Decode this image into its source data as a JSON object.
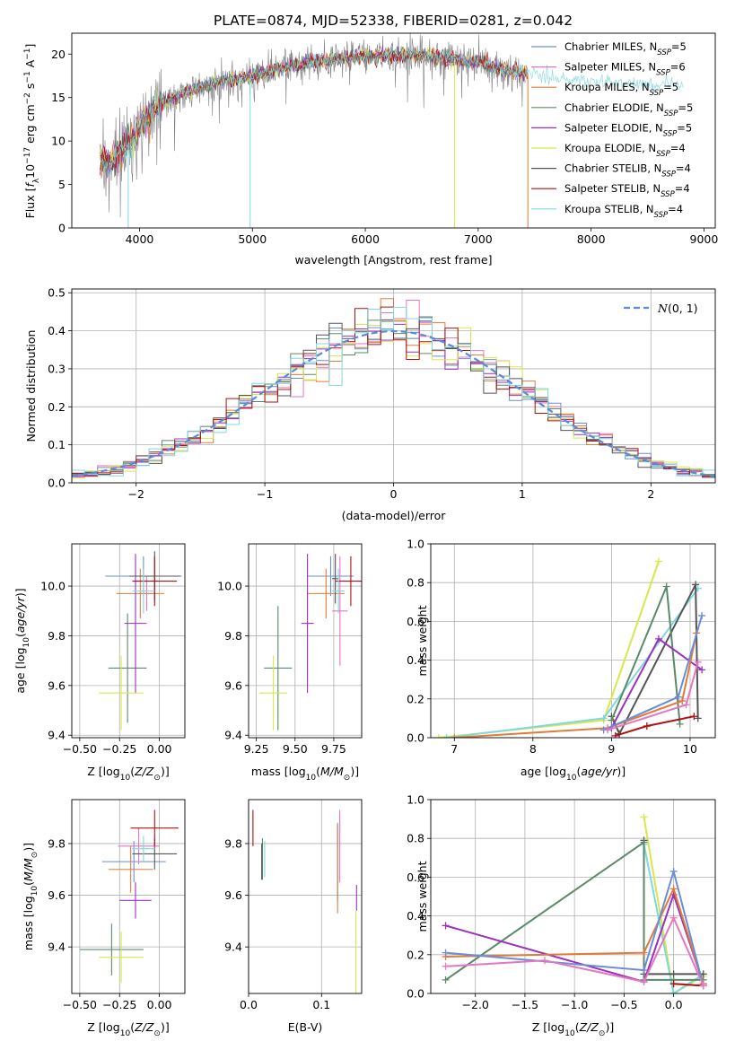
{
  "figure": {
    "title": "PLATE=0874, MJD=52338, FIBERID=0281, z=0.042"
  },
  "chart_data": [
    {
      "id": "spectrum",
      "type": "line",
      "xlabel": "wavelength [Angstrom, rest frame]",
      "ylabel": "Flux [f_λ10^-17 erg cm^-2 s^-1 A^-1]",
      "xlim": [
        3400,
        9100
      ],
      "ylim": [
        0,
        22.4
      ],
      "xticks": [
        4000,
        5000,
        6000,
        7000,
        8000,
        9000
      ],
      "yticks": [
        0,
        5,
        10,
        15,
        20
      ],
      "legend": [
        {
          "base": "Chabrier MILES, N",
          "sub": "SSP",
          "tail": "=5",
          "color": "#6a8ed6"
        },
        {
          "base": "Salpeter MILES, N",
          "sub": "SSP",
          "tail": "=6",
          "color": "#e377c2"
        },
        {
          "base": "Kroupa MILES, N",
          "sub": "SSP",
          "tail": "=5",
          "color": "#e07b39"
        },
        {
          "base": "Chabrier ELODIE, N",
          "sub": "SSP",
          "tail": "=5",
          "color": "#5a8a6a"
        },
        {
          "base": "Salpeter ELODIE, N",
          "sub": "SSP",
          "tail": "=5",
          "color": "#9b30c0"
        },
        {
          "base": "Kroupa ELODIE, N",
          "sub": "SSP",
          "tail": "=4",
          "color": "#d8e84a"
        },
        {
          "base": "Chabrier STELIB, N",
          "sub": "SSP",
          "tail": "=4",
          "color": "#555555"
        },
        {
          "base": "Salpeter STELIB, N",
          "sub": "SSP",
          "tail": "=4",
          "color": "#b01010"
        },
        {
          "base": "Kroupa STELIB, N",
          "sub": "SSP",
          "tail": "=4",
          "color": "#7fd8e0"
        }
      ],
      "continuum": {
        "x": [
          3650,
          3750,
          3850,
          3950,
          4050,
          4150,
          4300,
          4500,
          4700,
          4900,
          5100,
          5300,
          5500,
          5800,
          6100,
          6400,
          6700,
          7000,
          7300,
          7600,
          7900,
          8200,
          8500,
          8800
        ],
        "y": [
          8.0,
          7.5,
          9.0,
          10.5,
          12.5,
          14.0,
          15.0,
          16.0,
          16.8,
          17.2,
          17.8,
          18.5,
          19.0,
          19.5,
          19.8,
          20.0,
          19.5,
          19.0,
          18.0,
          17.5,
          17.0,
          16.8,
          16.5,
          16.4
        ]
      },
      "data_color": "#7f7f7f"
    },
    {
      "id": "residuals",
      "type": "bar",
      "xlabel": "(data-model)/error",
      "ylabel": "Normed distribution",
      "xlim": [
        -2.5,
        2.5
      ],
      "ylim": [
        0,
        0.51
      ],
      "xticks": [
        -2,
        -1,
        0,
        1,
        2
      ],
      "yticks": [
        0.0,
        0.1,
        0.2,
        0.3,
        0.4,
        0.5
      ],
      "grid": true,
      "bin_width": 0.1,
      "reference_label": "N(0,1)",
      "reference_color": "#5b8bd8",
      "legend_position": "top-right",
      "series_colors": [
        "#6a8ed6",
        "#e377c2",
        "#e07b39",
        "#5a8a6a",
        "#9b30c0",
        "#d8e84a",
        "#555555",
        "#b01010",
        "#7fd8e0"
      ]
    },
    {
      "id": "age-vs-Z",
      "type": "scatter",
      "xlabel": "Z [log10(Z/Z⊙)]",
      "ylabel": "age [log10(age/yr)]",
      "xlim": [
        -0.55,
        0.16
      ],
      "ylim": [
        9.39,
        10.17
      ],
      "xticks": [
        -0.5,
        -0.25,
        0.0
      ],
      "yticks": [
        9.4,
        9.6,
        9.8,
        10.0
      ],
      "grid": true,
      "points": [
        {
          "color": "#6a8ed6",
          "x": -0.1,
          "ex": 0.24,
          "y": 10.04,
          "ey": 0.08
        },
        {
          "color": "#e377c2",
          "x": -0.08,
          "ex": 0.04,
          "y": 9.97,
          "ey": 0.07
        },
        {
          "color": "#e07b39",
          "x": -0.12,
          "ex": 0.15,
          "y": 9.97,
          "ey": 0.1
        },
        {
          "color": "#5a8a6a",
          "x": -0.2,
          "ex": 0.12,
          "y": 9.67,
          "ey": 0.22
        },
        {
          "color": "#9b30c0",
          "x": -0.15,
          "ex": 0.07,
          "y": 9.85,
          "ey": 0.28
        },
        {
          "color": "#d8e84a",
          "x": -0.24,
          "ex": 0.14,
          "y": 9.57,
          "ey": 0.15
        },
        {
          "color": "#555555",
          "x": -0.03,
          "ex": 0.16,
          "y": 10.04,
          "ey": 0.1
        },
        {
          "color": "#b01010",
          "x": -0.03,
          "ex": 0.14,
          "y": 10.02,
          "ey": 0.1
        },
        {
          "color": "#7fd8e0",
          "x": -0.1,
          "ex": 0.07,
          "y": 9.98,
          "ey": 0.09
        }
      ]
    },
    {
      "id": "age-vs-mass",
      "type": "scatter",
      "xlabel": "mass [log10(M/M⊙)]",
      "ylabel": "",
      "xlim": [
        9.2,
        9.93
      ],
      "ylim": [
        9.39,
        10.17
      ],
      "xticks": [
        9.25,
        9.5,
        9.75
      ],
      "yticks": [
        9.4,
        9.6,
        9.8,
        10.0
      ],
      "grid": true,
      "points": [
        {
          "color": "#6a8ed6",
          "x": 9.73,
          "ex": 0.15,
          "y": 10.04,
          "ey": 0.08
        },
        {
          "color": "#e377c2",
          "x": 9.79,
          "ex": 0.05,
          "y": 9.9,
          "ey": 0.22
        },
        {
          "color": "#e07b39",
          "x": 9.7,
          "ex": 0.12,
          "y": 9.97,
          "ey": 0.1
        },
        {
          "color": "#5a8a6a",
          "x": 9.39,
          "ex": 0.09,
          "y": 9.67,
          "ey": 0.25
        },
        {
          "color": "#9b30c0",
          "x": 9.58,
          "ex": 0.04,
          "y": 9.85,
          "ey": 0.28
        },
        {
          "color": "#d8e84a",
          "x": 9.36,
          "ex": 0.09,
          "y": 9.57,
          "ey": 0.15
        },
        {
          "color": "#555555",
          "x": 9.76,
          "ex": 0.02,
          "y": 10.03,
          "ey": 0.1
        },
        {
          "color": "#b01010",
          "x": 9.86,
          "ex": 0.1,
          "y": 10.02,
          "ey": 0.1
        },
        {
          "color": "#7fd8e0",
          "x": 9.78,
          "ex": 0.04,
          "y": 9.98,
          "ey": 0.09
        }
      ]
    },
    {
      "id": "weight-vs-age",
      "type": "line",
      "xlabel": "age [log10(age/yr)]",
      "ylabel": "mass weight",
      "xlim": [
        6.7,
        10.32
      ],
      "ylim": [
        0,
        1.0
      ],
      "xticks": [
        7,
        8,
        9,
        10
      ],
      "yticks": [
        0.0,
        0.2,
        0.4,
        0.6,
        0.8,
        1.0
      ],
      "grid": true,
      "series": [
        {
          "color": "#d8e84a",
          "x": [
            6.8,
            8.9,
            9.6
          ],
          "y": [
            0.0,
            0.09,
            0.91
          ]
        },
        {
          "color": "#7fd8e0",
          "x": [
            6.9,
            8.9,
            10.1
          ],
          "y": [
            0.0,
            0.1,
            0.77
          ]
        },
        {
          "color": "#555555",
          "x": [
            9.0,
            9.1,
            10.07,
            10.1
          ],
          "y": [
            0.11,
            0.02,
            0.79,
            0.1
          ]
        },
        {
          "color": "#5a8a6a",
          "x": [
            9.0,
            9.7,
            9.87
          ],
          "y": [
            0.09,
            0.78,
            0.07
          ]
        },
        {
          "color": "#9b30c0",
          "x": [
            9.0,
            9.6,
            10.15
          ],
          "y": [
            0.05,
            0.51,
            0.35
          ]
        },
        {
          "color": "#b01010",
          "x": [
            9.05,
            9.45,
            10.05
          ],
          "y": [
            0.01,
            0.06,
            0.11
          ]
        },
        {
          "color": "#e07b39",
          "x": [
            7.0,
            8.95,
            9.9,
            10.08
          ],
          "y": [
            0.0,
            0.05,
            0.19,
            0.54
          ]
        },
        {
          "color": "#6a8ed6",
          "x": [
            8.9,
            9.85,
            10.15
          ],
          "y": [
            0.04,
            0.21,
            0.63
          ]
        },
        {
          "color": "#e377c2",
          "x": [
            8.95,
            9.95,
            10.1
          ],
          "y": [
            0.04,
            0.17,
            0.39
          ]
        }
      ]
    },
    {
      "id": "mass-vs-Z",
      "type": "scatter",
      "xlabel": "Z [log10(Z/Z⊙)]",
      "ylabel": "mass [log10(M/M⊙)]",
      "xlim": [
        -0.55,
        0.16
      ],
      "ylim": [
        9.22,
        9.97
      ],
      "xticks": [
        -0.5,
        -0.25,
        0.0
      ],
      "yticks": [
        9.4,
        9.6,
        9.8
      ],
      "grid": true,
      "points": [
        {
          "color": "#6a8ed6",
          "x": -0.16,
          "ex": 0.2,
          "y": 9.73,
          "ey": 0.08
        },
        {
          "color": "#e377c2",
          "x": -0.13,
          "ex": 0.13,
          "y": 9.79,
          "ey": 0.07
        },
        {
          "color": "#e07b39",
          "x": -0.18,
          "ex": 0.14,
          "y": 9.7,
          "ey": 0.09
        },
        {
          "color": "#5a8a6a",
          "x": -0.3,
          "ex": 0.2,
          "y": 9.39,
          "ey": 0.1
        },
        {
          "color": "#9b30c0",
          "x": -0.15,
          "ex": 0.1,
          "y": 9.58,
          "ey": 0.07
        },
        {
          "color": "#d8e84a",
          "x": -0.24,
          "ex": 0.14,
          "y": 9.36,
          "ey": 0.1
        },
        {
          "color": "#555555",
          "x": -0.03,
          "ex": 0.14,
          "y": 9.76,
          "ey": 0.06
        },
        {
          "color": "#b01010",
          "x": -0.03,
          "ex": 0.15,
          "y": 9.86,
          "ey": 0.07
        },
        {
          "color": "#7fd8e0",
          "x": -0.1,
          "ex": 0.07,
          "y": 9.78,
          "ey": 0.05
        }
      ]
    },
    {
      "id": "mass-vs-ebv",
      "type": "scatter",
      "xlabel": "E(B-V)",
      "ylabel": "",
      "xlim": [
        0,
        0.155
      ],
      "ylim": [
        9.22,
        9.97
      ],
      "xticks": [
        0.0,
        0.1
      ],
      "yticks": [
        9.4,
        9.6,
        9.8
      ],
      "grid": true,
      "points": [
        {
          "color": "#6a8ed6",
          "x": 0.122,
          "ex": 0.0,
          "y": 9.73,
          "ey": 0.15
        },
        {
          "color": "#e377c2",
          "x": 0.125,
          "ex": 0.0,
          "y": 9.79,
          "ey": 0.14
        },
        {
          "color": "#e07b39",
          "x": 0.122,
          "ex": 0.0,
          "y": 9.7,
          "ey": 0.17
        },
        {
          "color": "#5a8a6a",
          "x": 0.019,
          "ex": 0.0,
          "y": 9.74,
          "ey": 0.08
        },
        {
          "color": "#9b30c0",
          "x": 0.148,
          "ex": 0.0,
          "y": 9.59,
          "ey": 0.05
        },
        {
          "color": "#d8e84a",
          "x": 0.147,
          "ex": 0.0,
          "y": 9.38,
          "ey": 0.16
        },
        {
          "color": "#555555",
          "x": 0.018,
          "ex": 0.0,
          "y": 9.73,
          "ey": 0.07
        },
        {
          "color": "#b01010",
          "x": 0.006,
          "ex": 0.0,
          "y": 9.86,
          "ey": 0.07
        },
        {
          "color": "#7fd8e0",
          "x": 0.022,
          "ex": 0.0,
          "y": 9.74,
          "ey": 0.07
        }
      ]
    },
    {
      "id": "weight-vs-Z",
      "type": "line",
      "xlabel": "Z [log10(Z/Z⊙)]",
      "ylabel": "mass weight",
      "xlim": [
        -2.45,
        0.42
      ],
      "ylim": [
        0,
        1.0
      ],
      "xticks": [
        -2.0,
        -1.5,
        -1.0,
        -0.5,
        0.0
      ],
      "yticks": [
        0.0,
        0.2,
        0.4,
        0.6,
        0.8,
        1.0
      ],
      "grid": true,
      "series": [
        {
          "color": "#d8e84a",
          "x": [
            -0.3,
            0.0,
            0.3
          ],
          "y": [
            0.91,
            0.0,
            0.09
          ]
        },
        {
          "color": "#7fd8e0",
          "x": [
            -0.3,
            0.0,
            0.3
          ],
          "y": [
            0.77,
            0.0,
            0.1
          ]
        },
        {
          "color": "#555555",
          "x": [
            -0.3,
            -0.3,
            0.0,
            0.3
          ],
          "y": [
            0.79,
            0.1,
            0.1,
            0.1
          ]
        },
        {
          "color": "#5a8a6a",
          "x": [
            -2.3,
            -0.3,
            -0.3,
            0.0,
            0.3
          ],
          "y": [
            0.07,
            0.78,
            0.07,
            0.07,
            0.07
          ]
        },
        {
          "color": "#9b30c0",
          "x": [
            -2.3,
            -0.3,
            0.0,
            0.3
          ],
          "y": [
            0.35,
            0.06,
            0.51,
            0.05
          ]
        },
        {
          "color": "#b01010",
          "x": [
            0.0,
            0.3
          ],
          "y": [
            0.05,
            0.04
          ]
        },
        {
          "color": "#e07b39",
          "x": [
            -2.3,
            -0.3,
            0.0,
            0.3
          ],
          "y": [
            0.19,
            0.21,
            0.54,
            0.05
          ]
        },
        {
          "color": "#6a8ed6",
          "x": [
            -2.3,
            -0.3,
            0.0,
            0.3
          ],
          "y": [
            0.21,
            0.12,
            0.63,
            0.04
          ]
        },
        {
          "color": "#e377c2",
          "x": [
            -2.3,
            -1.3,
            -0.3,
            0.0,
            0.3
          ],
          "y": [
            0.14,
            0.17,
            0.06,
            0.39,
            0.04
          ]
        }
      ]
    }
  ]
}
